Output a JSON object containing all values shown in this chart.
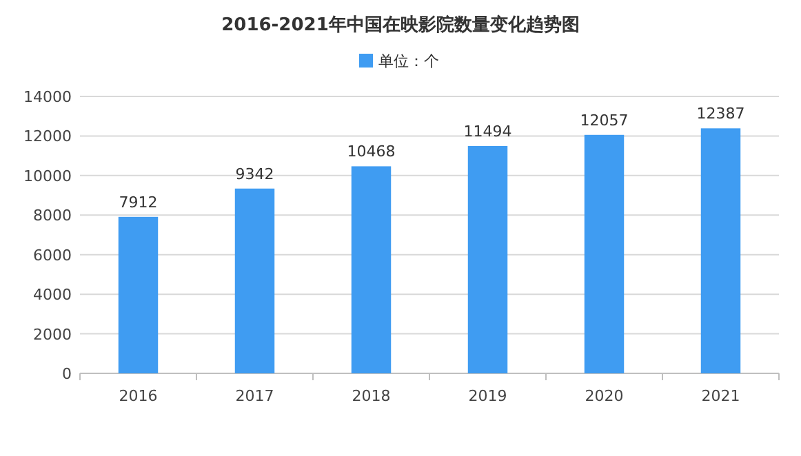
{
  "chart_data": {
    "type": "bar",
    "title": "2016-2021年中国在映影院数量变化趋势图",
    "categories": [
      "2016",
      "2017",
      "2018",
      "2019",
      "2020",
      "2021"
    ],
    "series": [
      {
        "name": "单位：个",
        "color": "#3f9cf2",
        "values": [
          7912,
          9342,
          10468,
          11494,
          12057,
          12387
        ]
      }
    ],
    "ylim": [
      0,
      14000
    ],
    "yticks": [
      0,
      2000,
      4000,
      6000,
      8000,
      10000,
      12000,
      14000
    ],
    "grid": "y",
    "legend": "top",
    "data_labels": true
  }
}
